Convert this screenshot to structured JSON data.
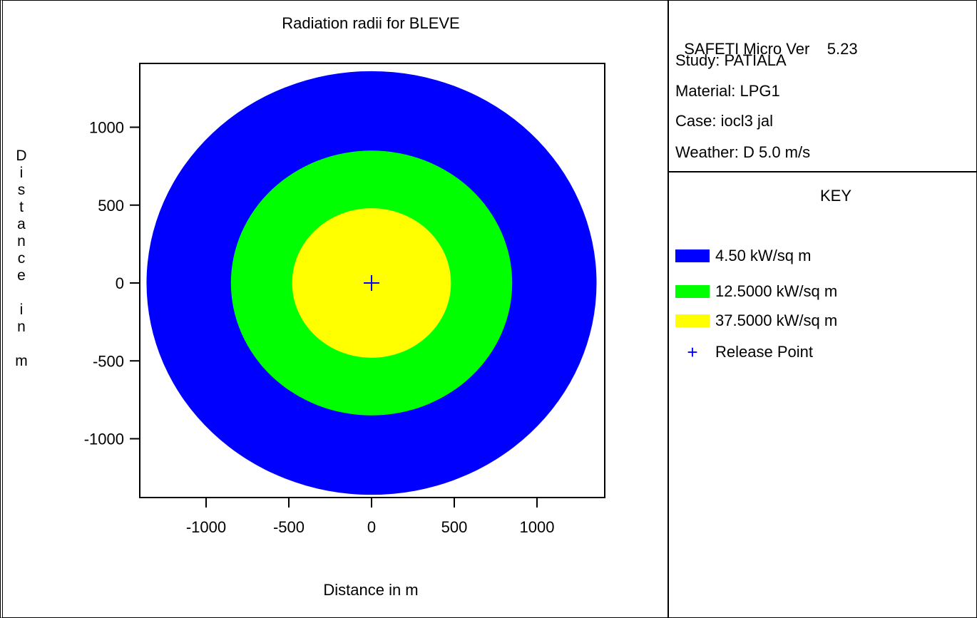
{
  "info": {
    "version_label": "SAFETI Micro Ver",
    "version_number": "5.23",
    "study": "Study: PATIALA",
    "material": "Material: LPG1",
    "case": "Case: iocl3 jal",
    "weather": "Weather: D 5.0 m/s"
  },
  "key": {
    "title": "KEY",
    "items": [
      {
        "label": "4.50 kW/sq m",
        "color": "#0000ff"
      },
      {
        "label": "12.5000 kW/sq m",
        "color": "#00ff00"
      },
      {
        "label": "37.5000 kW/sq m",
        "color": "#ffff00"
      }
    ],
    "release_point": {
      "label": "Release Point",
      "symbol": "+",
      "color": "#0000ff"
    }
  },
  "chart_data": {
    "type": "scatter",
    "title": "Radiation radii for BLEVE",
    "xlabel": "Distance in m",
    "ylabel": "Distance in m",
    "xlim": [
      -1400,
      1400
    ],
    "ylim": [
      -1300,
      1300
    ],
    "xticks": [
      -1000,
      -500,
      0,
      500,
      1000
    ],
    "yticks": [
      1000,
      500,
      0,
      -500,
      -1000
    ],
    "xtick_labels": [
      "-1000",
      "-500",
      "0",
      "500",
      "1000"
    ],
    "ytick_labels": [
      "1000",
      "500",
      "0",
      "-500",
      "-1000"
    ],
    "release_point": {
      "x": 0,
      "y": 0
    },
    "series": [
      {
        "name": "4.50 kW/sq m",
        "radius": 1360,
        "color": "#0000ff"
      },
      {
        "name": "12.5000 kW/sq m",
        "radius": 850,
        "color": "#00ff00"
      },
      {
        "name": "37.5000 kW/sq m",
        "radius": 480,
        "color": "#ffff00"
      }
    ],
    "grid": false,
    "legend": "right"
  }
}
